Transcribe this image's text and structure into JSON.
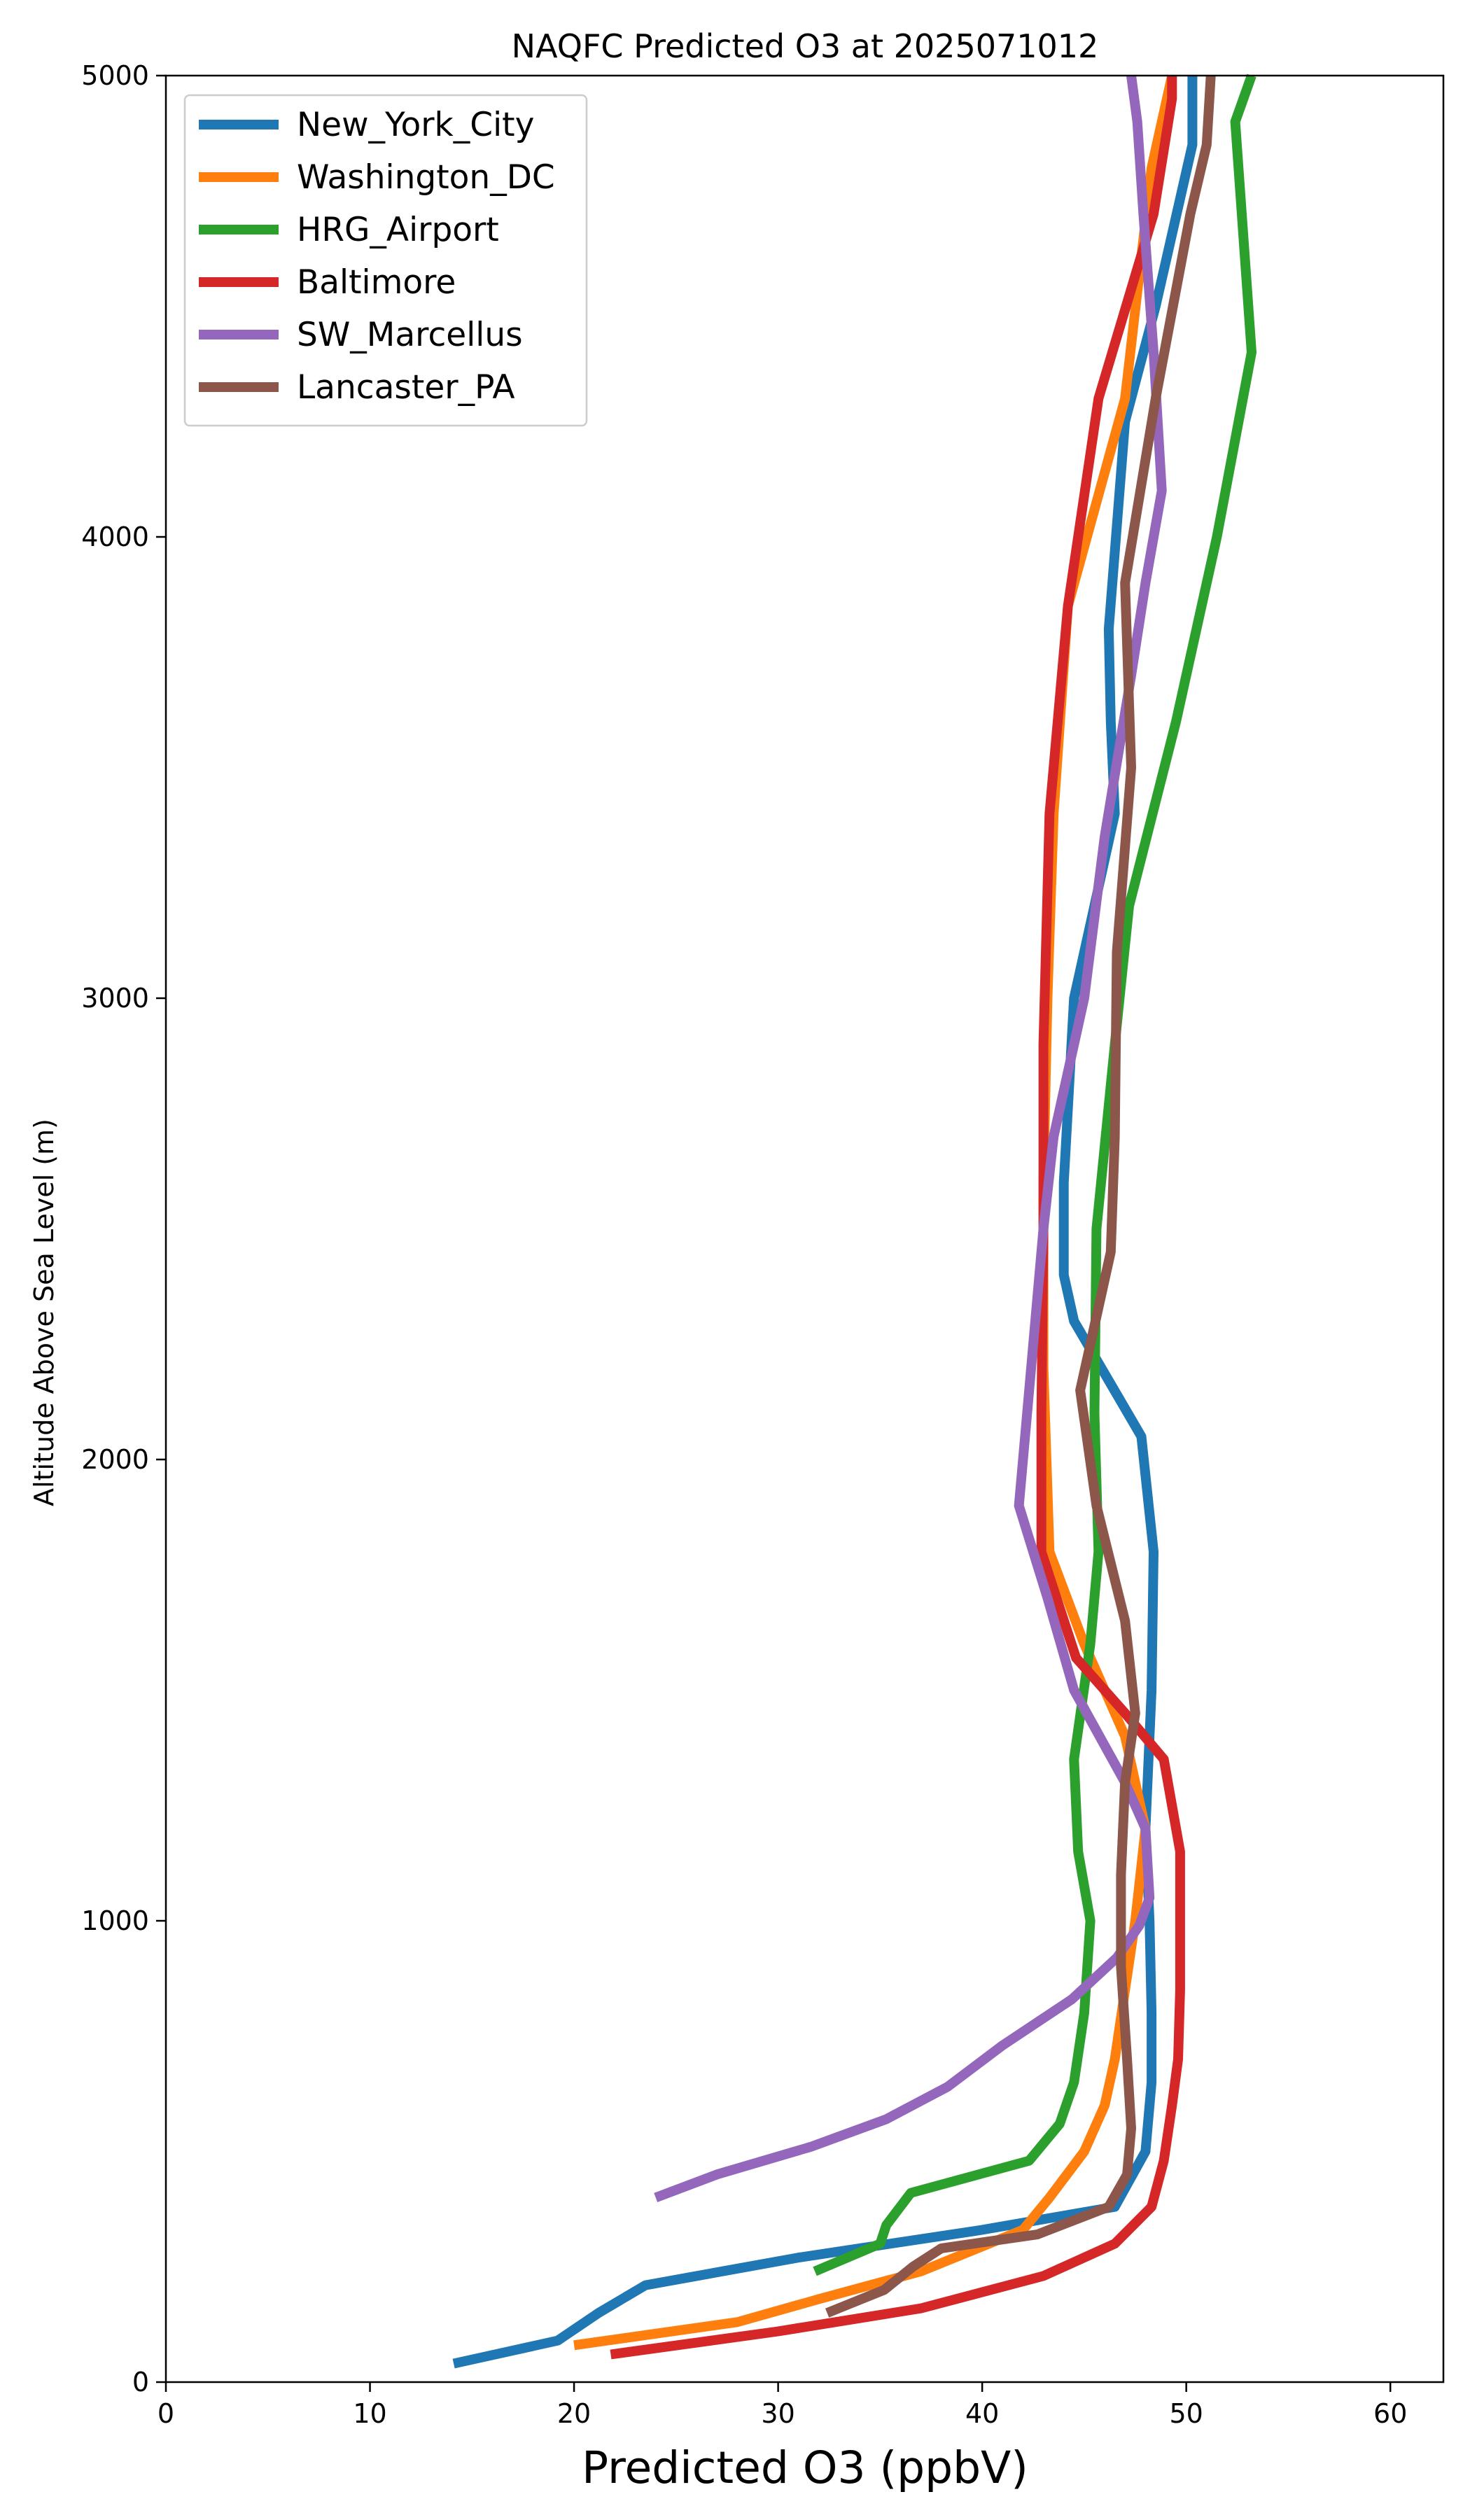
{
  "chart_data": {
    "type": "line",
    "title": "NAQFC Predicted O3 at 2025071012",
    "xlabel": "Predicted O3 (ppbV)",
    "ylabel": "Altitude Above Sea Level (m)",
    "xlim": [
      0,
      62.6
    ],
    "ylim": [
      0,
      5000
    ],
    "xticks": [
      "0",
      "10",
      "20",
      "30",
      "40",
      "50",
      "60"
    ],
    "yticks": [
      "0",
      "1000",
      "2000",
      "3000",
      "4000",
      "5000"
    ],
    "grid": false,
    "legend_position": "top-left",
    "series": [
      {
        "name": "New_York_City",
        "color": "#1f77b4",
        "points": [
          [
            14.1,
            40
          ],
          [
            19.2,
            90
          ],
          [
            21.2,
            150
          ],
          [
            23.5,
            210
          ],
          [
            31,
            270
          ],
          [
            40,
            330
          ],
          [
            46.5,
            380
          ],
          [
            48,
            500
          ],
          [
            48.3,
            650
          ],
          [
            48.3,
            800
          ],
          [
            48.2,
            1000
          ],
          [
            48,
            1200
          ],
          [
            48.3,
            1500
          ],
          [
            48.4,
            1800
          ],
          [
            47.8,
            2050
          ],
          [
            44.5,
            2300
          ],
          [
            44,
            2400
          ],
          [
            44,
            2600
          ],
          [
            44.5,
            3000
          ],
          [
            46.5,
            3400
          ],
          [
            46.3,
            3600
          ],
          [
            46.2,
            3800
          ],
          [
            47,
            4250
          ],
          [
            48.5,
            4500
          ],
          [
            50.3,
            4850
          ],
          [
            50.3,
            5000
          ]
        ]
      },
      {
        "name": "Washington_DC",
        "color": "#ff7f0e",
        "points": [
          [
            20,
            80
          ],
          [
            28,
            130
          ],
          [
            32,
            180
          ],
          [
            37,
            240
          ],
          [
            42,
            330
          ],
          [
            43.3,
            400
          ],
          [
            45,
            500
          ],
          [
            46,
            600
          ],
          [
            46.5,
            700
          ],
          [
            47.5,
            1000
          ],
          [
            48,
            1200
          ],
          [
            47,
            1400
          ],
          [
            45,
            1600
          ],
          [
            43.3,
            1800
          ],
          [
            43,
            2200
          ],
          [
            43,
            2600
          ],
          [
            43.2,
            3000
          ],
          [
            43.5,
            3400
          ],
          [
            44.2,
            3850
          ],
          [
            47,
            4300
          ],
          [
            48.3,
            4800
          ],
          [
            49.3,
            5000
          ]
        ]
      },
      {
        "name": "HRG_Airport",
        "color": "#2ca02c",
        "points": [
          [
            31.8,
            240
          ],
          [
            35,
            300
          ],
          [
            35.3,
            340
          ],
          [
            36.5,
            410
          ],
          [
            42.3,
            480
          ],
          [
            43.8,
            560
          ],
          [
            44.5,
            650
          ],
          [
            45,
            800
          ],
          [
            45.3,
            1000
          ],
          [
            44.7,
            1150
          ],
          [
            44.5,
            1350
          ],
          [
            45.3,
            1600
          ],
          [
            45.7,
            1800
          ],
          [
            45.5,
            2100
          ],
          [
            45.6,
            2500
          ],
          [
            46.5,
            2900
          ],
          [
            47.2,
            3200
          ],
          [
            49.5,
            3600
          ],
          [
            51.5,
            4000
          ],
          [
            53.2,
            4400
          ],
          [
            52.4,
            4900
          ],
          [
            53.2,
            5000
          ]
        ]
      },
      {
        "name": "Baltimore",
        "color": "#d62728",
        "points": [
          [
            21.8,
            60
          ],
          [
            30,
            110
          ],
          [
            37,
            160
          ],
          [
            43,
            230
          ],
          [
            46.5,
            300
          ],
          [
            48.3,
            380
          ],
          [
            48.9,
            480
          ],
          [
            49.3,
            600
          ],
          [
            49.6,
            700
          ],
          [
            49.7,
            850
          ],
          [
            49.7,
            1000
          ],
          [
            49.7,
            1150
          ],
          [
            48.9,
            1350
          ],
          [
            47,
            1450
          ],
          [
            44.6,
            1570
          ],
          [
            42.9,
            1800
          ],
          [
            42.9,
            2100
          ],
          [
            43,
            2500
          ],
          [
            43,
            2900
          ],
          [
            43.3,
            3400
          ],
          [
            44.2,
            3850
          ],
          [
            45.7,
            4300
          ],
          [
            48.4,
            4700
          ],
          [
            49.3,
            4950
          ],
          [
            49.3,
            5000
          ]
        ]
      },
      {
        "name": "SW_Marcellus",
        "color": "#9467bd",
        "points": [
          [
            24,
            400
          ],
          [
            27,
            450
          ],
          [
            31.6,
            510
          ],
          [
            35.3,
            570
          ],
          [
            38.3,
            640
          ],
          [
            41,
            730
          ],
          [
            44.4,
            830
          ],
          [
            46.6,
            920
          ],
          [
            47.7,
            990
          ],
          [
            48.2,
            1050
          ],
          [
            48,
            1200
          ],
          [
            47,
            1300
          ],
          [
            44.5,
            1500
          ],
          [
            43.2,
            1700
          ],
          [
            41.8,
            1900
          ],
          [
            42.2,
            2100
          ],
          [
            43,
            2500
          ],
          [
            43.5,
            2700
          ],
          [
            45,
            3000
          ],
          [
            46,
            3350
          ],
          [
            47.3,
            3700
          ],
          [
            48,
            3900
          ],
          [
            48.8,
            4100
          ],
          [
            48.4,
            4400
          ],
          [
            47.9,
            4700
          ],
          [
            47.6,
            4900
          ],
          [
            47.3,
            5000
          ]
        ]
      },
      {
        "name": "Lancaster_PA",
        "color": "#8c564b",
        "points": [
          [
            32.4,
            150
          ],
          [
            35.2,
            200
          ],
          [
            36.6,
            250
          ],
          [
            38,
            290
          ],
          [
            42.7,
            320
          ],
          [
            46.2,
            380
          ],
          [
            47.1,
            450
          ],
          [
            47.3,
            550
          ],
          [
            47.1,
            700
          ],
          [
            46.8,
            900
          ],
          [
            46.8,
            1100
          ],
          [
            47,
            1300
          ],
          [
            47.5,
            1450
          ],
          [
            47,
            1650
          ],
          [
            45.6,
            1900
          ],
          [
            44.8,
            2150
          ],
          [
            46.3,
            2450
          ],
          [
            46.5,
            2700
          ],
          [
            46.6,
            3100
          ],
          [
            47.3,
            3500
          ],
          [
            47,
            3900
          ],
          [
            48.5,
            4300
          ],
          [
            50.2,
            4700
          ],
          [
            51,
            4850
          ],
          [
            51.2,
            5000
          ]
        ]
      }
    ]
  }
}
